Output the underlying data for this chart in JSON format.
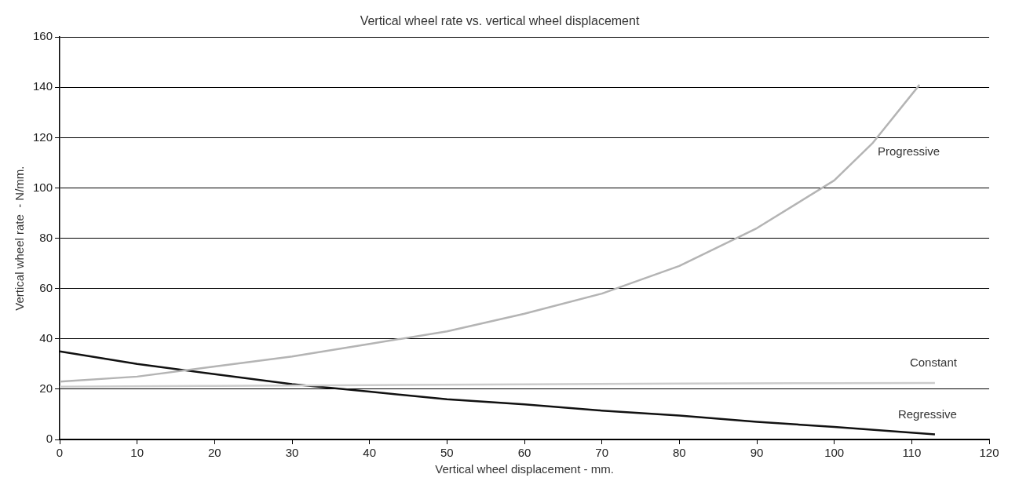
{
  "chart_data": {
    "type": "line",
    "title": "Vertical wheel rate vs. vertical wheel displacement",
    "xlabel": "Vertical wheel displacement - mm.",
    "ylabel": "Vertical wheel rate  - N/mm.",
    "xlim": [
      0,
      120
    ],
    "xticks": [
      0,
      10,
      20,
      30,
      40,
      50,
      60,
      70,
      80,
      90,
      100,
      110,
      120
    ],
    "ylim": [
      0,
      160
    ],
    "yticks": [
      0,
      20,
      40,
      60,
      80,
      100,
      120,
      140,
      160
    ],
    "grid": "y",
    "legend": false,
    "marker": "none",
    "line_style": "solid",
    "series": [
      {
        "name": "Progressive",
        "color": "#b4b4b4",
        "x": [
          0,
          10,
          20,
          30,
          40,
          50,
          60,
          70,
          80,
          90,
          100,
          105,
          111
        ],
        "values": [
          23,
          25,
          29,
          33,
          38,
          43,
          50,
          58,
          69,
          84,
          103,
          118,
          141
        ]
      },
      {
        "name": "Constant",
        "color": "#cccccc",
        "x": [
          0,
          20,
          40,
          60,
          80,
          100,
          113
        ],
        "values": [
          21,
          21.3,
          21.6,
          21.9,
          22.2,
          22.4,
          22.5
        ]
      },
      {
        "name": "Regressive",
        "color": "#111111",
        "x": [
          0,
          10,
          20,
          30,
          40,
          50,
          60,
          70,
          80,
          90,
          100,
          113
        ],
        "values": [
          35,
          30,
          26,
          22,
          19,
          16,
          14,
          11.5,
          9.5,
          7,
          5,
          2
        ]
      }
    ]
  }
}
